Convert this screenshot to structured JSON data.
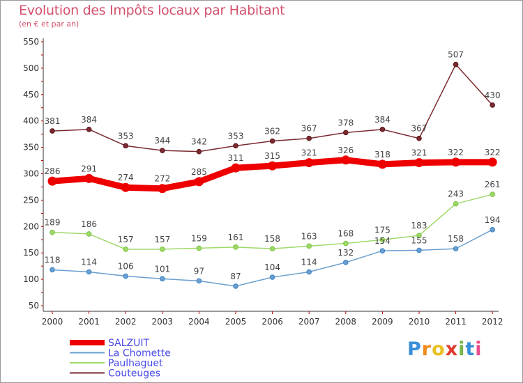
{
  "title": "Evolution des Impôts locaux par Habitant",
  "subtitle": "(en € et par an)",
  "logo": {
    "letters": [
      "P",
      "r",
      "o",
      "x",
      "i",
      "t",
      "i"
    ],
    "colors": [
      "#3a8fd8",
      "#f08a1c",
      "#e8c020",
      "#e0392b",
      "#74b744",
      "#3a8fd8",
      "#e84d8a"
    ]
  },
  "chart_data": {
    "type": "line",
    "title": "Evolution des Impôts locaux par Habitant",
    "subtitle": "(en € et par an)",
    "categories": [
      "2000",
      "2001",
      "2002",
      "2003",
      "2004",
      "2005",
      "2006",
      "2007",
      "2008",
      "2009",
      "2010",
      "2011",
      "2012"
    ],
    "y_ticks": [
      "50",
      "100",
      "150",
      "200",
      "250",
      "300",
      "350",
      "400",
      "450",
      "500",
      "550"
    ],
    "ylim": [
      50,
      550
    ],
    "grid": false,
    "legend_position": "bottom-left",
    "series": [
      {
        "name": "SALZUIT",
        "color": "#ee0000",
        "emphasis": true,
        "values": [
          286,
          291,
          274,
          272,
          285,
          311,
          315,
          321,
          326,
          318,
          321,
          322,
          322
        ],
        "labels": [
          "286",
          "291",
          "274",
          "272",
          "285",
          "311",
          "315",
          "321",
          "326",
          "318",
          "321",
          "322",
          "322"
        ]
      },
      {
        "name": "La Chomette",
        "color": "#6b9fd0",
        "marker": "#3a82c4",
        "values": [
          118,
          114,
          106,
          101,
          97,
          87,
          104,
          114,
          132,
          154,
          155,
          158,
          194
        ],
        "labels": [
          "118",
          "114",
          "106",
          "101",
          "97",
          "87",
          "104",
          "114",
          "132",
          "154",
          "155",
          "158",
          "194"
        ]
      },
      {
        "name": "Paulhaguet",
        "color": "#9fd86a",
        "marker": "#77c43a",
        "values": [
          189,
          186,
          157,
          157,
          159,
          161,
          158,
          163,
          168,
          175,
          183,
          243,
          261
        ],
        "labels": [
          "189",
          "186",
          "157",
          "157",
          "159",
          "161",
          "158",
          "163",
          "168",
          "175",
          "183",
          "243",
          "261"
        ]
      },
      {
        "name": "Couteuges",
        "color": "#7a2a30",
        "marker": "#5b1518",
        "values": [
          381,
          384,
          353,
          344,
          342,
          353,
          362,
          367,
          378,
          384,
          367,
          507,
          430
        ],
        "labels": [
          "381",
          "384",
          "353",
          "344",
          "342",
          "353",
          "362",
          "367",
          "378",
          "384",
          "367",
          "507",
          "430"
        ]
      }
    ]
  }
}
